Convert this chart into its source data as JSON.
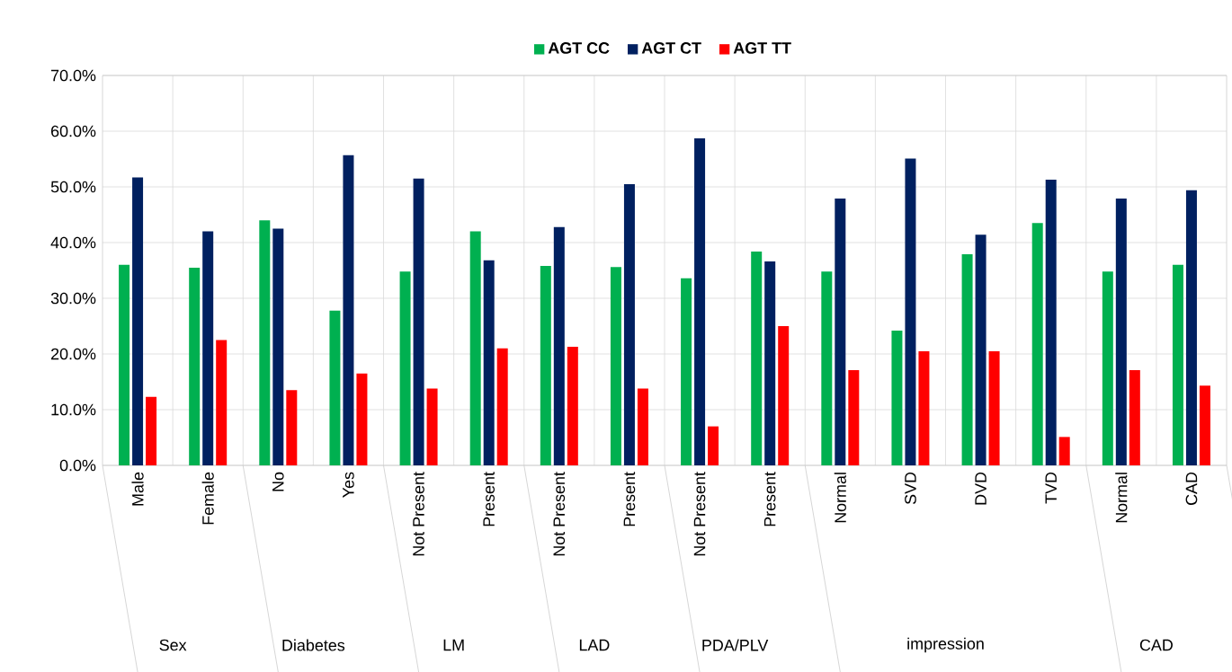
{
  "chart_data": {
    "type": "bar",
    "categories": [
      "Male",
      "Female",
      "No",
      "Yes",
      "Not Present",
      "Present",
      "Not Present",
      "Present",
      "Not Present",
      "Present",
      "Normal",
      "SVD",
      "DVD",
      "TVD",
      "Normal",
      "CAD"
    ],
    "series": [
      {
        "name": "AGT CC",
        "color": "#00b050",
        "values": [
          36,
          35.5,
          44,
          27.8,
          34.8,
          42,
          35.8,
          35.6,
          33.6,
          38.4,
          34.8,
          24.2,
          37.9,
          43.5,
          34.8,
          36
        ]
      },
      {
        "name": "AGT CT",
        "color": "#002060",
        "values": [
          51.7,
          42,
          42.5,
          55.7,
          51.5,
          36.8,
          42.8,
          50.5,
          58.7,
          36.6,
          47.9,
          55.1,
          41.4,
          51.3,
          47.9,
          49.4
        ]
      },
      {
        "name": "AGT TT",
        "color": "#ff0000",
        "values": [
          12.3,
          22.5,
          13.5,
          16.5,
          13.8,
          21,
          21.3,
          13.8,
          7,
          25,
          17.1,
          20.5,
          20.5,
          5.1,
          17.1,
          14.3
        ]
      }
    ],
    "ylim": [
      0,
      70
    ],
    "yticks": [
      {
        "value": 0,
        "label": "0.0%"
      },
      {
        "value": 10,
        "label": "10.0%"
      },
      {
        "value": 20,
        "label": "20.0%"
      },
      {
        "value": 30,
        "label": "30.0%"
      },
      {
        "value": 40,
        "label": "40.0%"
      },
      {
        "value": 50,
        "label": "50.0%"
      },
      {
        "value": 60,
        "label": "60.0%"
      },
      {
        "value": 70,
        "label": "70.0%"
      }
    ],
    "grid": true,
    "legend": "top",
    "annotations": [
      "Sex",
      "Diabetes",
      "LM",
      "LAD",
      "PDA/PLV",
      "impression",
      "CAD"
    ]
  }
}
